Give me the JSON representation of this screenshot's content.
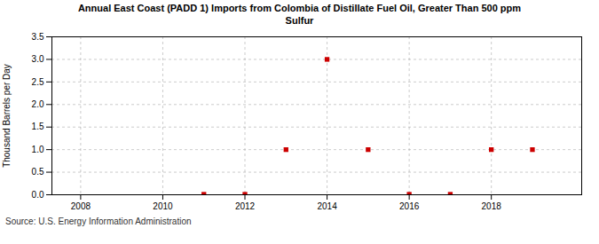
{
  "chart_data": {
    "type": "scatter",
    "title": "Annual East Coast (PADD 1) Imports from Colombia of Distillate Fuel Oil, Greater Than 500 ppm\nSulfur",
    "y_label": "Thousand Barrels per Day",
    "annotations": [
      "Source: U.S. Energy Information Administration"
    ],
    "x": [
      2008,
      2009,
      2010,
      2011,
      2012,
      2013,
      2014,
      2015,
      2016,
      2017,
      2018,
      2019
    ],
    "values": [
      null,
      null,
      null,
      0.01,
      0.01,
      1.0,
      3.0,
      1.0,
      0.01,
      0.01,
      1.0,
      1.0
    ],
    "color": "#cc0000",
    "marker": "square",
    "xlim": [
      2007.3,
      2020.2
    ],
    "xticks": [
      2008,
      2010,
      2012,
      2014,
      2016,
      2018
    ],
    "ylim": [
      0.0,
      3.5
    ],
    "yticks": [
      {
        "value": 0,
        "label": "0.0"
      },
      0.5,
      {
        "value": 1,
        "label": "1.0"
      },
      1.5,
      {
        "value": 2,
        "label": "2.0"
      },
      2.5,
      {
        "value": 3,
        "label": "3.0"
      },
      3.5
    ],
    "grid": true
  }
}
